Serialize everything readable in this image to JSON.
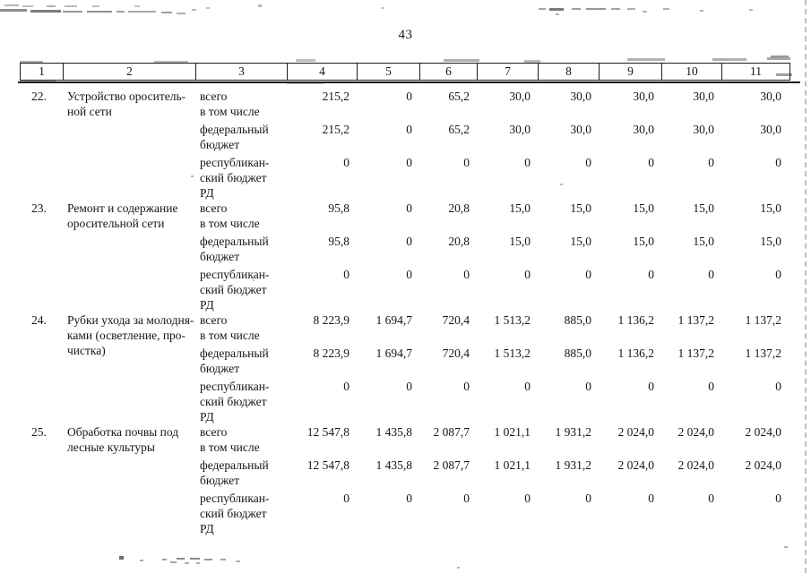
{
  "page": {
    "number": "43"
  },
  "table": {
    "header_columns": [
      "1",
      "2",
      "3",
      "4",
      "5",
      "6",
      "7",
      "8",
      "9",
      "10",
      "11"
    ],
    "rows": [
      {
        "num": "22.",
        "name_lines": [
          "Устройство ороситель-",
          "ной сети"
        ],
        "subrows": [
          {
            "label_lines": [
              "всего",
              "в том числе"
            ],
            "values": [
              "215,2",
              "0",
              "65,2",
              "30,0",
              "30,0",
              "30,0",
              "30,0",
              "30,0"
            ]
          },
          {
            "label_lines": [
              "федеральный",
              "бюджет"
            ],
            "values": [
              "215,2",
              "0",
              "65,2",
              "30,0",
              "30,0",
              "30,0",
              "30,0",
              "30,0"
            ]
          },
          {
            "label_lines": [
              "республикан-",
              "ский бюджет",
              "РД"
            ],
            "values": [
              "0",
              "0",
              "0",
              "0",
              "0",
              "0",
              "0",
              "0"
            ]
          }
        ]
      },
      {
        "num": "23.",
        "name_lines": [
          "Ремонт и содержание",
          "оросительной сети"
        ],
        "subrows": [
          {
            "label_lines": [
              "всего",
              "в том числе"
            ],
            "values": [
              "95,8",
              "0",
              "20,8",
              "15,0",
              "15,0",
              "15,0",
              "15,0",
              "15,0"
            ]
          },
          {
            "label_lines": [
              "федеральный",
              "бюджет"
            ],
            "values": [
              "95,8",
              "0",
              "20,8",
              "15,0",
              "15,0",
              "15,0",
              "15,0",
              "15,0"
            ]
          },
          {
            "label_lines": [
              "республикан-",
              "ский бюджет",
              "РД"
            ],
            "values": [
              "0",
              "0",
              "0",
              "0",
              "0",
              "0",
              "0",
              "0"
            ]
          }
        ]
      },
      {
        "num": "24.",
        "name_lines": [
          "Рубки ухода за молодня-",
          "ками (осветление, про-",
          "чистка)"
        ],
        "subrows": [
          {
            "label_lines": [
              "всего",
              "в том числе"
            ],
            "values": [
              "8 223,9",
              "1 694,7",
              "720,4",
              "1 513,2",
              "885,0",
              "1 136,2",
              "1 137,2",
              "1 137,2"
            ]
          },
          {
            "label_lines": [
              "федеральный",
              "бюджет"
            ],
            "values": [
              "8 223,9",
              "1 694,7",
              "720,4",
              "1 513,2",
              "885,0",
              "1 136,2",
              "1 137,2",
              "1 137,2"
            ]
          },
          {
            "label_lines": [
              "республикан-",
              "ский бюджет",
              "РД"
            ],
            "values": [
              "0",
              "0",
              "0",
              "0",
              "0",
              "0",
              "0",
              "0"
            ]
          }
        ]
      },
      {
        "num": "25.",
        "name_lines": [
          "Обработка почвы под",
          "лесные культуры"
        ],
        "subrows": [
          {
            "label_lines": [
              "всего",
              "в том числе"
            ],
            "values": [
              "12 547,8",
              "1 435,8",
              "2 087,7",
              "1 021,1",
              "1 931,2",
              "2 024,0",
              "2 024,0",
              "2 024,0"
            ]
          },
          {
            "label_lines": [
              "федеральный",
              "бюджет"
            ],
            "values": [
              "12 547,8",
              "1 435,8",
              "2 087,7",
              "1 021,1",
              "1 931,2",
              "2 024,0",
              "2 024,0",
              "2 024,0"
            ]
          },
          {
            "label_lines": [
              "республикан-",
              "ский бюджет",
              "РД"
            ],
            "values": [
              "0",
              "0",
              "0",
              "0",
              "0",
              "0",
              "0",
              "0"
            ]
          }
        ]
      }
    ]
  }
}
